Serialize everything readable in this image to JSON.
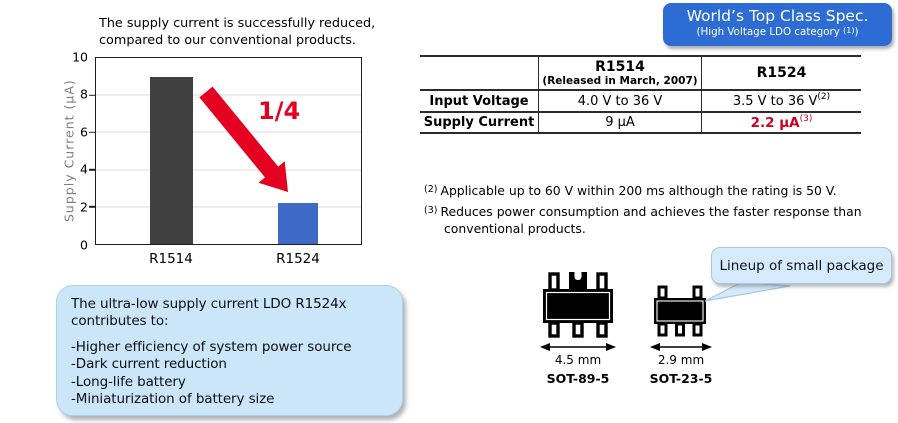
{
  "chart_data": {
    "type": "bar",
    "title": "The supply current is successfully reduced,\ncompared to our conventional products.",
    "categories": [
      "R1514",
      "R1524"
    ],
    "values": [
      9,
      2.2
    ],
    "xlabel": "",
    "ylabel": "Supply Current (µA)",
    "ylim": [
      0,
      10
    ],
    "yticks": [
      0,
      2,
      4,
      6,
      8,
      10
    ],
    "grid": "horizontal",
    "legend": "none",
    "annotation": "1/4",
    "bar_colors": [
      "#404040",
      "#3e6ac5"
    ]
  },
  "badge": {
    "title": "World’s Top Class Spec.",
    "subtitle_pre": "(High Voltage LDO category ",
    "subtitle_sup": "(1)",
    "subtitle_post": ")",
    "bg_color": "#2d6cd2"
  },
  "spec_table": {
    "columns": [
      "",
      "R1514",
      "R1524"
    ],
    "r1514_sub": "(Released in March, 2007)",
    "rows": [
      {
        "label": "Input Voltage",
        "r1514": "4.0 V to 36 V",
        "r1524": "3.5 V to 36 V",
        "r1524_sup": "(2)"
      },
      {
        "label": "Supply Current",
        "r1514": "9 µA",
        "r1524": "2.2 µA",
        "r1524_sup": "(3)",
        "highlight_color": "#cc0022"
      }
    ]
  },
  "footnotes": [
    {
      "marker": "(2)",
      "text": "Applicable up to 60 V within 200 ms although the rating is 50 V."
    },
    {
      "marker": "(3)",
      "text": "Reduces power consumption and achieves the faster response than conventional products."
    }
  ],
  "benefits": {
    "intro": "The ultra-low supply current LDO R1524x\ncontributes to:",
    "items": [
      "-Higher efficiency of system power source",
      "-Dark current reduction",
      "-Long-life battery",
      "-Miniaturization of battery size"
    ]
  },
  "packages": {
    "callout": "Lineup of small package",
    "items": [
      {
        "dimension": "4.5 mm",
        "name": "SOT-89-5"
      },
      {
        "dimension": "2.9 mm",
        "name": "SOT-23-5"
      }
    ]
  },
  "colors": {
    "accent_red": "#e30021",
    "table_red": "#cc0022",
    "bar_dark": "#404040",
    "bar_blue": "#3e6ac5",
    "badge_blue": "#2d6cd2",
    "panel_blue": "#cbe6f8",
    "callout_blue": "#d5eafa"
  }
}
